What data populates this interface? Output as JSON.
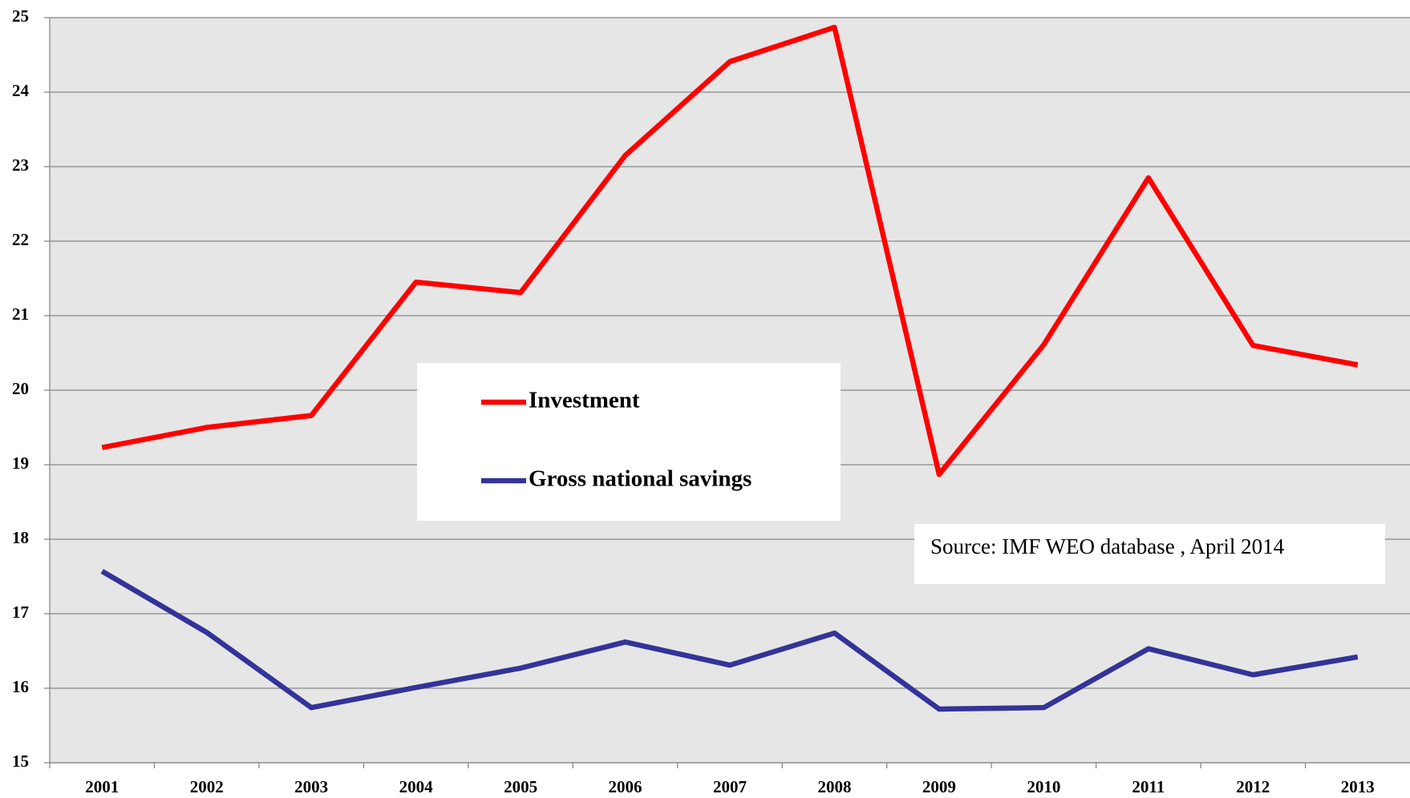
{
  "chart_data": {
    "type": "line",
    "categories": [
      "2001",
      "2002",
      "2003",
      "2004",
      "2005",
      "2006",
      "2007",
      "2008",
      "2009",
      "2010",
      "2011",
      "2012",
      "2013"
    ],
    "series": [
      {
        "name": "Investment",
        "color": "#ff0000",
        "values": [
          19.23,
          19.5,
          19.66,
          21.45,
          21.31,
          23.15,
          24.41,
          24.87,
          18.87,
          20.61,
          22.85,
          20.6,
          20.34
        ]
      },
      {
        "name": "Gross national savings",
        "color": "#333399",
        "values": [
          17.57,
          16.75,
          15.74,
          16.01,
          16.27,
          16.62,
          16.31,
          16.74,
          15.72,
          15.74,
          16.53,
          16.18,
          16.42
        ]
      }
    ],
    "ylim": [
      15,
      25
    ],
    "yticks": [
      15,
      16,
      17,
      18,
      19,
      20,
      21,
      22,
      23,
      24,
      25
    ],
    "grid": true,
    "annotation": "Source: IMF WEO database , April  2014"
  }
}
